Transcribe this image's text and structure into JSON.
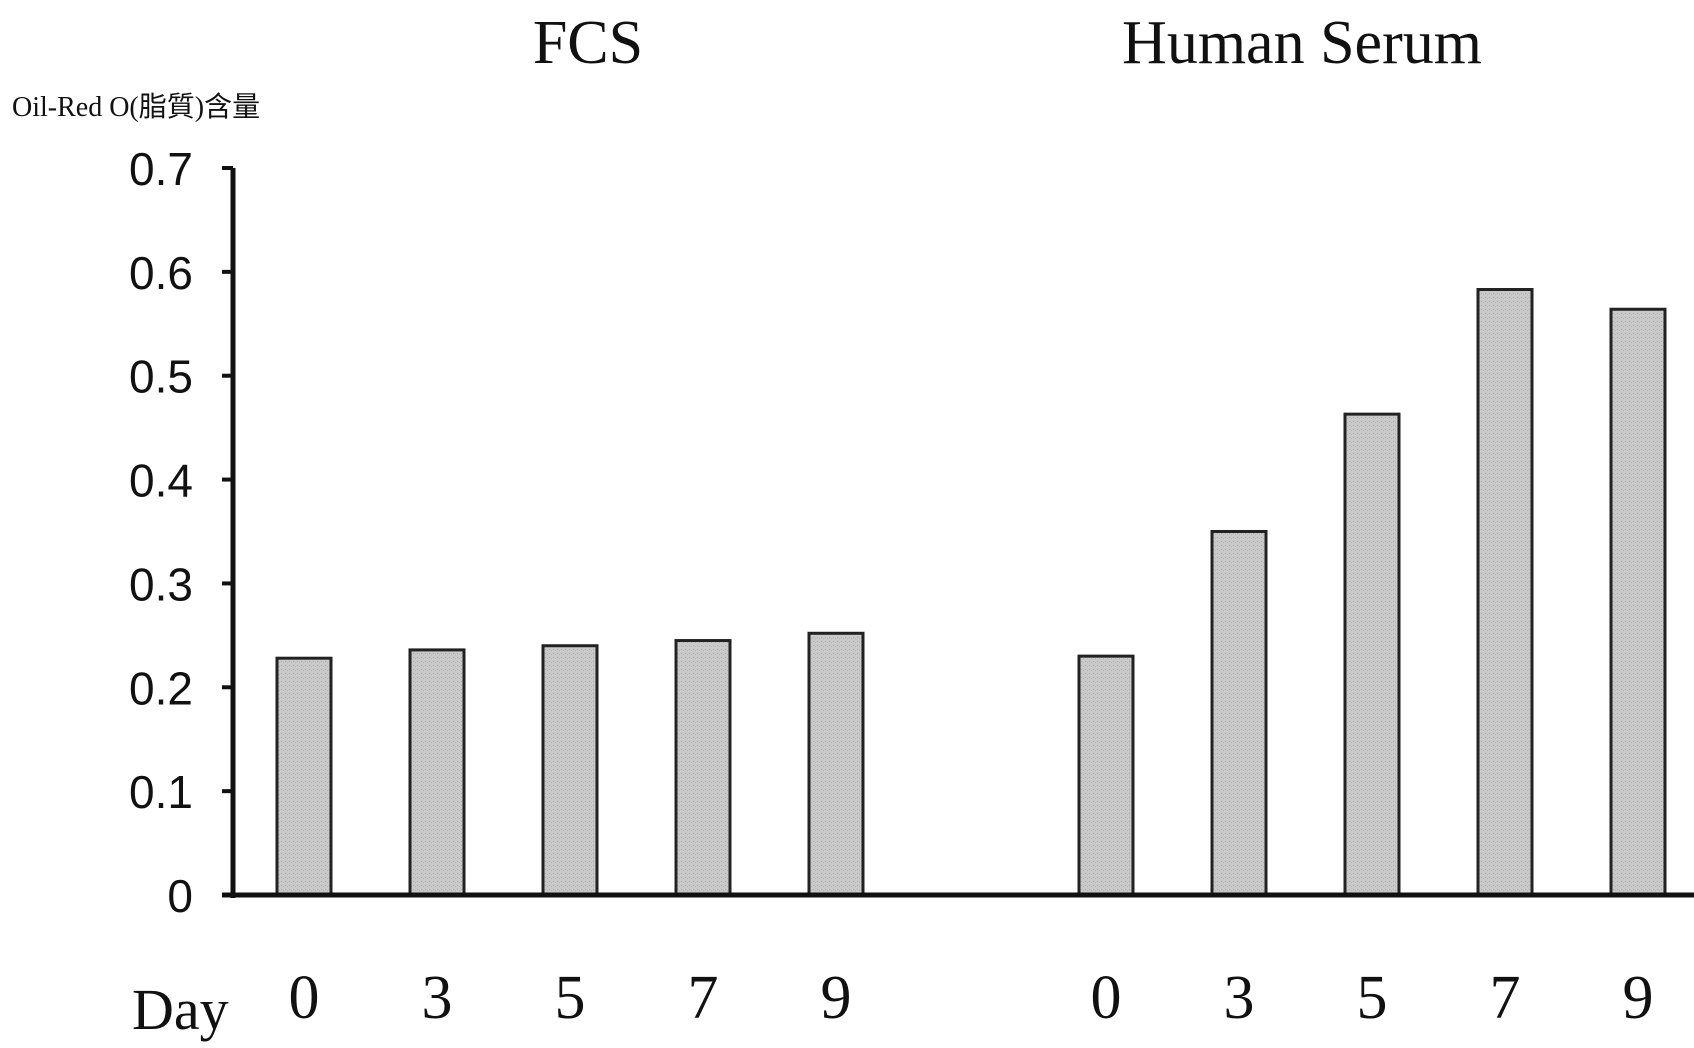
{
  "chart_data": {
    "type": "bar",
    "ylabel": "Oil-Red O(脂質)含量",
    "xlabel": "Day",
    "ylim": [
      0,
      0.7
    ],
    "yticks": [
      "0",
      "0.1",
      "0.2",
      "0.3",
      "0.4",
      "0.5",
      "0.6",
      "0.7"
    ],
    "grid": false,
    "bar_color": "#c6c6c6",
    "groups": [
      {
        "title": "FCS",
        "categories": [
          "0",
          "3",
          "5",
          "7",
          "9"
        ],
        "values": [
          0.228,
          0.236,
          0.24,
          0.245,
          0.252
        ]
      },
      {
        "title": "Human Serum",
        "categories": [
          "0",
          "3",
          "5",
          "7",
          "9"
        ],
        "values": [
          0.23,
          0.35,
          0.463,
          0.583,
          0.564
        ]
      }
    ]
  }
}
